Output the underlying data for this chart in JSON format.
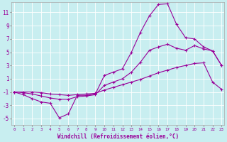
{
  "xlabel": "Windchill (Refroidissement éolien,°C)",
  "bg_color": "#c8eef0",
  "line_color": "#990099",
  "grid_color": "#ffffff",
  "xlim": [
    -0.3,
    23.3
  ],
  "ylim": [
    -6.0,
    12.5
  ],
  "yticks": [
    -5,
    -3,
    -1,
    1,
    3,
    5,
    7,
    9,
    11
  ],
  "xticks": [
    0,
    1,
    2,
    3,
    4,
    5,
    6,
    7,
    8,
    9,
    10,
    11,
    12,
    13,
    14,
    15,
    16,
    17,
    18,
    19,
    20,
    21,
    22,
    23
  ],
  "line1_x": [
    0,
    1,
    2,
    3,
    4,
    5,
    6,
    7,
    8,
    9,
    10,
    11,
    12,
    13,
    14,
    15,
    16,
    17,
    18,
    19,
    20,
    21,
    22,
    23
  ],
  "line1_y": [
    -1.0,
    -1.4,
    -2.0,
    -2.5,
    -2.7,
    -4.9,
    -4.3,
    -1.5,
    -1.5,
    -1.3,
    1.5,
    2.0,
    2.5,
    5.0,
    8.0,
    10.5,
    12.2,
    12.3,
    9.2,
    7.2,
    7.0,
    5.8,
    5.2,
    3.0
  ],
  "line2_x": [
    0,
    1,
    2,
    3,
    4,
    5,
    6,
    7,
    8,
    9,
    10,
    11,
    12,
    13,
    14,
    15,
    16,
    17,
    18,
    19,
    20,
    21,
    22,
    23
  ],
  "line2_y": [
    -1.0,
    -1.1,
    -1.3,
    -1.6,
    -1.9,
    -2.1,
    -2.1,
    -1.7,
    -1.6,
    -1.4,
    0.0,
    0.5,
    1.0,
    2.0,
    3.5,
    5.3,
    5.8,
    6.2,
    5.6,
    5.3,
    6.0,
    5.5,
    5.2,
    3.0
  ],
  "line3_x": [
    0,
    1,
    2,
    3,
    4,
    5,
    6,
    7,
    8,
    9,
    10,
    11,
    12,
    13,
    14,
    15,
    16,
    17,
    18,
    19,
    20,
    21,
    22,
    23
  ],
  "line3_y": [
    -1.0,
    -1.0,
    -1.0,
    -1.1,
    -1.3,
    -1.4,
    -1.5,
    -1.4,
    -1.3,
    -1.2,
    -0.7,
    -0.3,
    0.1,
    0.5,
    0.9,
    1.4,
    1.9,
    2.3,
    2.7,
    3.0,
    3.3,
    3.4,
    0.5,
    -0.6
  ]
}
